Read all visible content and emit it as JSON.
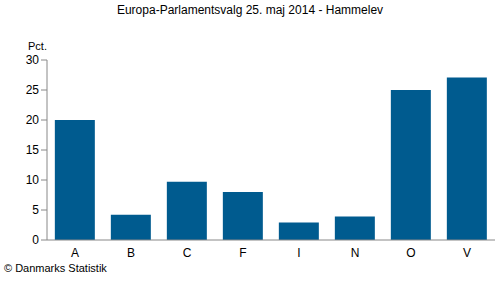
{
  "chart_data": {
    "type": "bar",
    "title": "Europa-Parlamentsvalg 25. maj 2014 - Hammelev",
    "y_label": "Pct.",
    "source": "© Danmarks Statistik",
    "categories": [
      "A",
      "B",
      "C",
      "F",
      "I",
      "N",
      "O",
      "V"
    ],
    "values": [
      20.0,
      4.2,
      9.7,
      8.0,
      2.9,
      3.9,
      25.0,
      27.1
    ],
    "color": "#005b8f",
    "ylim": [
      0,
      30
    ],
    "yticks": [
      0,
      5,
      10,
      15,
      20,
      25,
      30
    ],
    "grid": false
  }
}
